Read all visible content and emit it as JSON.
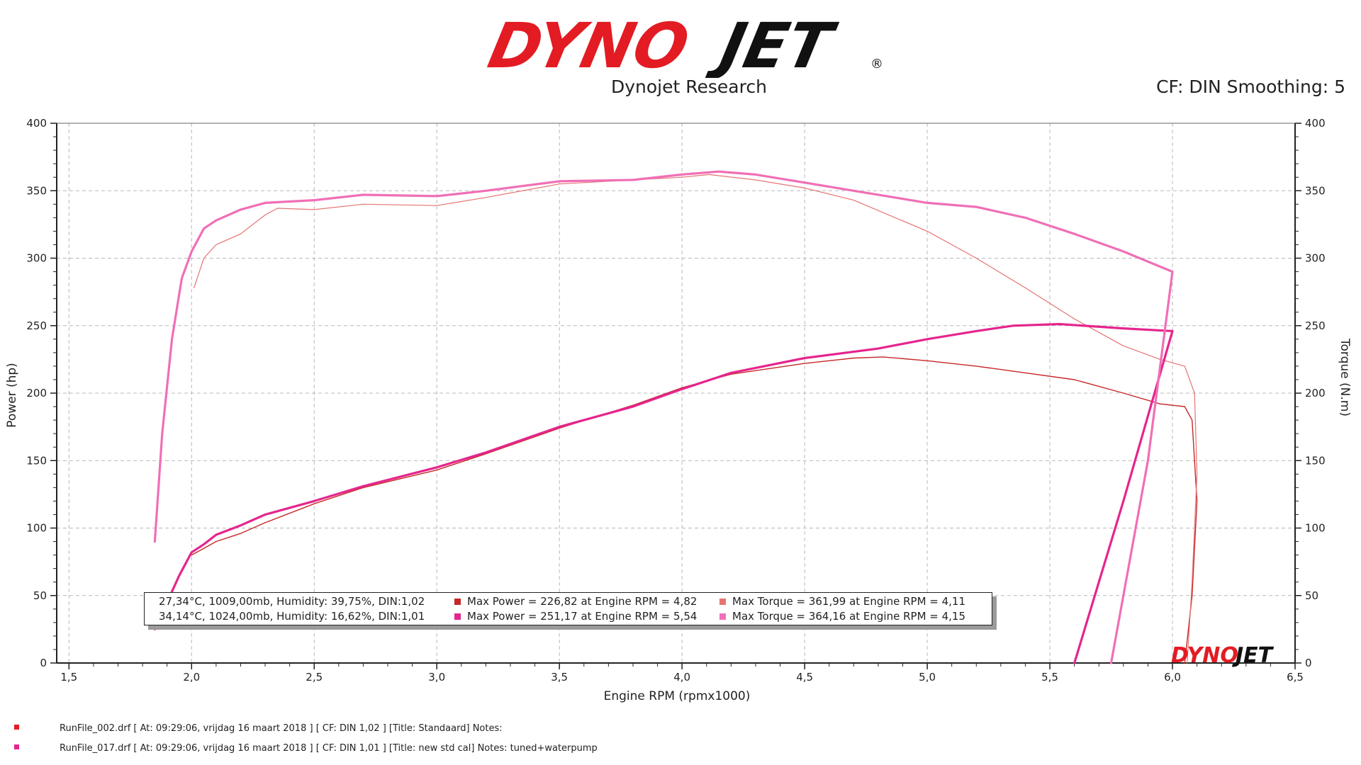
{
  "header": {
    "logo_text": "DYNOJET",
    "subtitle": "Dynojet Research",
    "cf_info": "CF: DIN Smoothing: 5"
  },
  "colors": {
    "run1_power": "#c62828",
    "run1_torque": "#e57373",
    "run2_power": "#e5258d",
    "run2_torque": "#f06fb6",
    "logo_red": "#e31b23",
    "logo_black": "#111111"
  },
  "legend": {
    "rows": [
      {
        "conditions": "27,34°C, 1009,00mb, Humidity: 39,75%, DIN:1,02",
        "max_power": "Max Power = 226,82 at Engine RPM = 4,82",
        "max_torque": "Max Torque = 361,99 at Engine RPM = 4,11"
      },
      {
        "conditions": "34,14°C, 1024,00mb, Humidity: 16,62%, DIN:1,01",
        "max_power": "Max Power = 251,17 at Engine RPM = 5,54",
        "max_torque": "Max Torque = 364,16 at Engine RPM = 4,15"
      }
    ]
  },
  "footer": {
    "runs": [
      {
        "text": "RunFile_002.drf  [  At:  09:29:06,  vrijdag  16  maart  2018  ]  [  CF:  DIN  1,02  ]  [Title:  Standaard]    Notes:"
      },
      {
        "text": "RunFile_017.drf  [  At:  09:29:06,  vrijdag  16  maart  2018  ]  [  CF:  DIN  1,01  ]  [Title:  new  std  cal]    Notes:  tuned+waterpump"
      }
    ]
  },
  "chart_data": {
    "type": "line",
    "xlabel": "Engine RPM (rpmx1000)",
    "ylabel": "Power (hp)",
    "y2label": "Torque (N.m)",
    "xlim": [
      1.45,
      6.5
    ],
    "ylim": [
      0,
      400
    ],
    "y2lim": [
      0,
      400
    ],
    "x_ticks": [
      "1,5",
      "2,0",
      "2,5",
      "3,0",
      "3,5",
      "4,0",
      "4,5",
      "5,0",
      "5,5",
      "6,0",
      "6,5"
    ],
    "y_ticks": [
      "0",
      "50",
      "100",
      "150",
      "200",
      "250",
      "300",
      "350",
      "400"
    ],
    "grid": true,
    "series": [
      {
        "name": "RunFile_002.drf Power",
        "axis": "left",
        "color": "#c62828",
        "width": 1.4,
        "x": [
          2.0,
          2.05,
          2.1,
          2.2,
          2.3,
          2.5,
          2.7,
          3.0,
          3.2,
          3.5,
          3.8,
          4.0,
          4.2,
          4.5,
          4.7,
          4.82,
          5.0,
          5.2,
          5.4,
          5.6,
          5.8,
          5.95,
          6.05,
          6.08,
          6.1,
          6.08,
          6.05
        ],
        "y": [
          80,
          85,
          90,
          96,
          104,
          118,
          130,
          143,
          155,
          174,
          191,
          204,
          214,
          222,
          226,
          226.8,
          224,
          220,
          215,
          210,
          200,
          192,
          190,
          180,
          120,
          50,
          0
        ]
      },
      {
        "name": "RunFile_002.drf Torque",
        "axis": "right",
        "color": "#e57373",
        "width": 1.2,
        "x": [
          2.01,
          2.05,
          2.1,
          2.2,
          2.3,
          2.35,
          2.5,
          2.7,
          3.0,
          3.2,
          3.5,
          3.8,
          4.0,
          4.11,
          4.3,
          4.5,
          4.7,
          5.0,
          5.2,
          5.4,
          5.6,
          5.8,
          5.95,
          6.05,
          6.09,
          6.1,
          6.08,
          6.06
        ],
        "y": [
          278,
          300,
          310,
          318,
          332,
          337,
          336,
          340,
          339,
          345,
          355,
          358,
          360,
          362,
          358,
          352,
          343,
          320,
          300,
          278,
          255,
          235,
          225,
          220,
          200,
          140,
          60,
          0
        ]
      },
      {
        "name": "RunFile_017.drf Power",
        "axis": "left",
        "color": "#e5258d",
        "width": 3.2,
        "x": [
          1.85,
          1.9,
          1.95,
          2.0,
          2.05,
          2.1,
          2.2,
          2.3,
          2.5,
          2.7,
          3.0,
          3.2,
          3.5,
          3.8,
          4.0,
          4.2,
          4.5,
          4.8,
          5.0,
          5.2,
          5.35,
          5.54,
          5.8,
          6.0,
          5.8,
          5.6
        ],
        "y": [
          25,
          45,
          65,
          82,
          88,
          95,
          102,
          110,
          120,
          131,
          145,
          156,
          175,
          190,
          203,
          215,
          226,
          233,
          240,
          246,
          250,
          251.2,
          248,
          246,
          120,
          0
        ]
      },
      {
        "name": "RunFile_017.drf Torque",
        "axis": "right",
        "color": "#f06fb6",
        "width": 3.2,
        "x": [
          1.85,
          1.88,
          1.92,
          1.96,
          2.0,
          2.05,
          2.1,
          2.2,
          2.3,
          2.4,
          2.5,
          2.7,
          3.0,
          3.2,
          3.5,
          3.8,
          4.0,
          4.15,
          4.3,
          4.5,
          4.7,
          5.0,
          5.2,
          5.4,
          5.6,
          5.8,
          6.0,
          5.9,
          5.75
        ],
        "y": [
          90,
          170,
          240,
          285,
          305,
          322,
          328,
          336,
          341,
          342,
          343,
          347,
          346,
          350,
          357,
          358,
          362,
          364.2,
          362,
          356,
          350,
          341,
          338,
          330,
          318,
          305,
          290,
          150,
          0
        ]
      }
    ]
  }
}
